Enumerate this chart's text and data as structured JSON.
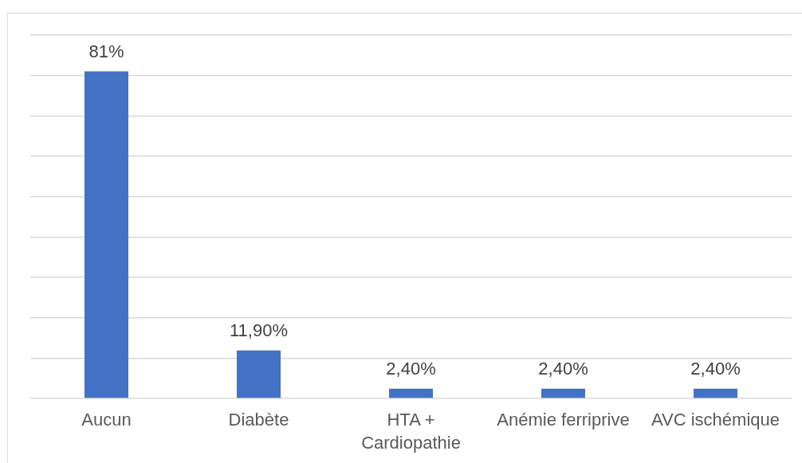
{
  "chart_data": {
    "type": "bar",
    "categories": [
      "Aucun",
      "Diabète",
      "HTA + Cardiopathie",
      "Anémie ferriprive",
      "AVC ischémique"
    ],
    "values": [
      81,
      11.9,
      2.4,
      2.4,
      2.4
    ],
    "value_labels": [
      "81%",
      "11,90%",
      "2,40%",
      "2,40%",
      "2,40%"
    ],
    "color": "#4472c4",
    "ylim": [
      0,
      90
    ],
    "yticks": [
      {
        "value": 0,
        "label": null
      },
      {
        "value": 10,
        "label": null
      },
      {
        "value": 20,
        "label": null
      },
      {
        "value": 30,
        "label": null
      },
      {
        "value": 40,
        "label": null
      },
      {
        "value": 50,
        "label": null
      },
      {
        "value": 60,
        "label": null
      },
      {
        "value": 70,
        "label": null
      },
      {
        "value": 80,
        "label": null
      },
      {
        "value": 90,
        "label": null
      }
    ],
    "grid": "y",
    "tick_labels": "x"
  }
}
